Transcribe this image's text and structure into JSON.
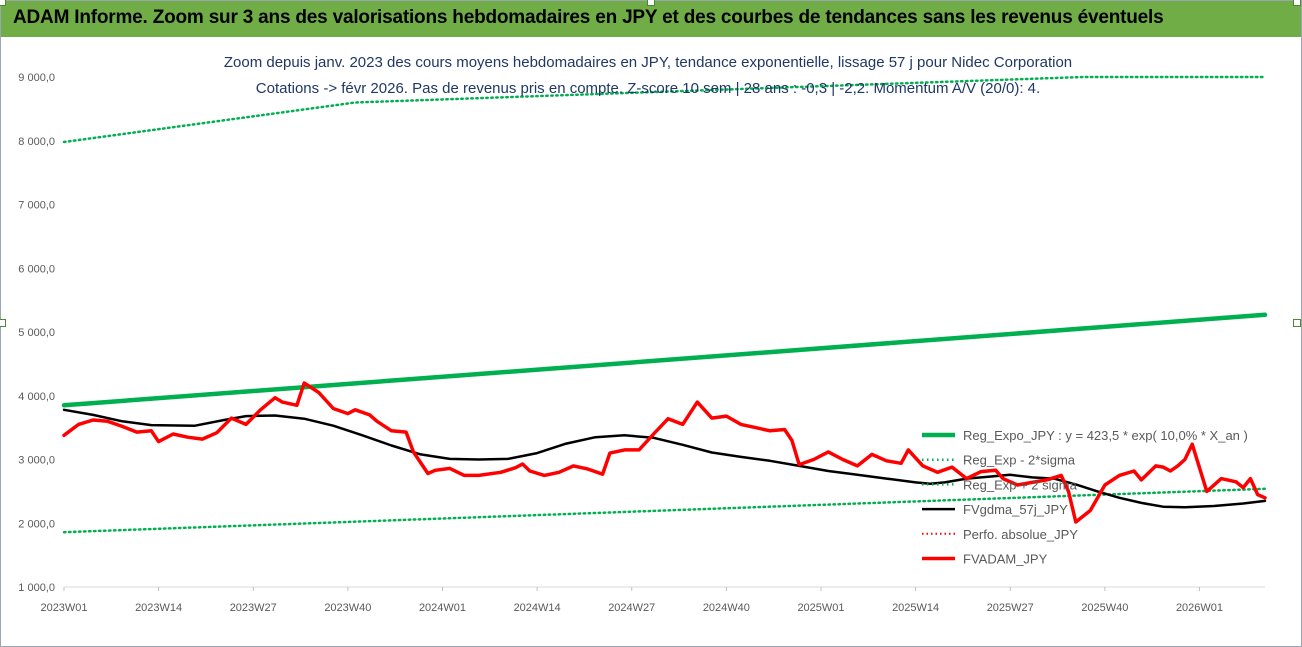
{
  "header": {
    "title": "ADAM Informe. Zoom sur 3 ans des valorisations hebdomadaires en JPY et des courbes de tendances sans les revenus éventuels"
  },
  "colors": {
    "header_bg": "#70ad47",
    "reg_expo": "#00b050",
    "band": "#00b050",
    "fvgdma": "#000000",
    "perfo": "#ff0000",
    "fvadam": "#ff0000",
    "title_text": "#1f3864"
  },
  "chart_data": {
    "type": "line",
    "title": "Zoom depuis janv. 2023 des cours moyens hebdomadaires en JPY, tendance exponentielle, lissage 57 j pour Nidec Corporation",
    "subtitle": "Cotations -> févr 2026.  Pas de revenus pris en compte. Z-score 10 sem | 28 ans : -0,3 | -2,2. Momentum A/V (20/0): 4.",
    "xlabel": "",
    "ylabel": "",
    "ylim": [
      1000,
      9000
    ],
    "yticks": [
      "1 000,0",
      "2 000,0",
      "3 000,0",
      "4 000,0",
      "5 000,0",
      "6 000,0",
      "7 000,0",
      "8 000,0",
      "9 000,0"
    ],
    "xlim": [
      0,
      165
    ],
    "xticks": [
      {
        "x": 0,
        "label": "2023W01"
      },
      {
        "x": 13,
        "label": "2023W14"
      },
      {
        "x": 26,
        "label": "2023W27"
      },
      {
        "x": 39,
        "label": "2023W40"
      },
      {
        "x": 52,
        "label": "2024W01"
      },
      {
        "x": 65,
        "label": "2024W14"
      },
      {
        "x": 78,
        "label": "2024W27"
      },
      {
        "x": 91,
        "label": "2024W40"
      },
      {
        "x": 104,
        "label": "2025W01"
      },
      {
        "x": 117,
        "label": "2025W14"
      },
      {
        "x": 130,
        "label": "2025W27"
      },
      {
        "x": 143,
        "label": "2025W40"
      },
      {
        "x": 156,
        "label": "2026W01"
      }
    ],
    "grid": false,
    "legend": "right",
    "series": [
      {
        "name": "Reg_Expo_JPY : y = 423,5 * exp( 10,0% *  X_an )",
        "style": "thick-solid",
        "color": "#00b050",
        "points": [
          [
            0,
            3850
          ],
          [
            165,
            5270
          ]
        ]
      },
      {
        "name": "Reg_Exp - 2*sigma",
        "style": "dotted",
        "color": "#00b050",
        "points": [
          [
            0,
            1860
          ],
          [
            165,
            2540
          ]
        ]
      },
      {
        "name": "Reg_Exp + 2 sigma",
        "style": "dotted",
        "color": "#00b050",
        "points": [
          [
            0,
            7980
          ],
          [
            40,
            8600
          ],
          [
            140,
            9000
          ],
          [
            165,
            9000
          ]
        ]
      },
      {
        "name": "FVgdma_57j_JPY",
        "style": "solid",
        "color": "#000000",
        "points": [
          [
            0,
            3780
          ],
          [
            4,
            3700
          ],
          [
            8,
            3600
          ],
          [
            12,
            3540
          ],
          [
            18,
            3530
          ],
          [
            22,
            3620
          ],
          [
            25,
            3680
          ],
          [
            29,
            3690
          ],
          [
            33,
            3640
          ],
          [
            37,
            3530
          ],
          [
            41,
            3380
          ],
          [
            45,
            3220
          ],
          [
            49,
            3080
          ],
          [
            53,
            3010
          ],
          [
            57,
            3000
          ],
          [
            61,
            3010
          ],
          [
            65,
            3100
          ],
          [
            69,
            3250
          ],
          [
            73,
            3350
          ],
          [
            77,
            3380
          ],
          [
            81,
            3340
          ],
          [
            85,
            3230
          ],
          [
            89,
            3110
          ],
          [
            93,
            3040
          ],
          [
            97,
            2980
          ],
          [
            101,
            2900
          ],
          [
            105,
            2820
          ],
          [
            109,
            2760
          ],
          [
            113,
            2700
          ],
          [
            117,
            2640
          ],
          [
            119,
            2620
          ],
          [
            121,
            2640
          ],
          [
            124,
            2700
          ],
          [
            127,
            2730
          ],
          [
            130,
            2760
          ],
          [
            133,
            2720
          ],
          [
            136,
            2700
          ],
          [
            139,
            2610
          ],
          [
            142,
            2500
          ],
          [
            145,
            2400
          ],
          [
            148,
            2320
          ],
          [
            151,
            2260
          ],
          [
            154,
            2250
          ],
          [
            158,
            2270
          ],
          [
            162,
            2310
          ],
          [
            165,
            2350
          ]
        ]
      },
      {
        "name": "Perfo. absolue_JPY",
        "style": "red-dotted",
        "color": "#ff0000",
        "points": []
      },
      {
        "name": "FVADAM_JPY",
        "style": "thick-solid",
        "color": "#ff0000",
        "points": [
          [
            0,
            3380
          ],
          [
            2,
            3550
          ],
          [
            4,
            3620
          ],
          [
            6,
            3600
          ],
          [
            8,
            3520
          ],
          [
            10,
            3430
          ],
          [
            12,
            3450
          ],
          [
            13,
            3280
          ],
          [
            15,
            3400
          ],
          [
            17,
            3350
          ],
          [
            19,
            3320
          ],
          [
            21,
            3420
          ],
          [
            23,
            3650
          ],
          [
            25,
            3550
          ],
          [
            27,
            3780
          ],
          [
            29,
            3970
          ],
          [
            30,
            3900
          ],
          [
            32,
            3850
          ],
          [
            33,
            4200
          ],
          [
            35,
            4050
          ],
          [
            37,
            3800
          ],
          [
            39,
            3720
          ],
          [
            40,
            3780
          ],
          [
            42,
            3700
          ],
          [
            43,
            3600
          ],
          [
            45,
            3450
          ],
          [
            47,
            3430
          ],
          [
            48,
            3120
          ],
          [
            50,
            2780
          ],
          [
            51,
            2830
          ],
          [
            53,
            2860
          ],
          [
            55,
            2750
          ],
          [
            57,
            2750
          ],
          [
            60,
            2800
          ],
          [
            62,
            2870
          ],
          [
            63,
            2930
          ],
          [
            64,
            2820
          ],
          [
            66,
            2750
          ],
          [
            68,
            2800
          ],
          [
            70,
            2900
          ],
          [
            72,
            2850
          ],
          [
            74,
            2770
          ],
          [
            75,
            3100
          ],
          [
            77,
            3150
          ],
          [
            79,
            3150
          ],
          [
            81,
            3400
          ],
          [
            83,
            3640
          ],
          [
            85,
            3550
          ],
          [
            87,
            3900
          ],
          [
            89,
            3650
          ],
          [
            91,
            3680
          ],
          [
            93,
            3550
          ],
          [
            95,
            3500
          ],
          [
            97,
            3450
          ],
          [
            99,
            3470
          ],
          [
            100,
            3300
          ],
          [
            101,
            2920
          ],
          [
            103,
            3000
          ],
          [
            105,
            3120
          ],
          [
            107,
            3000
          ],
          [
            109,
            2900
          ],
          [
            111,
            3080
          ],
          [
            113,
            2980
          ],
          [
            115,
            2940
          ],
          [
            116,
            3150
          ],
          [
            118,
            2900
          ],
          [
            120,
            2800
          ],
          [
            122,
            2880
          ],
          [
            124,
            2700
          ],
          [
            126,
            2810
          ],
          [
            128,
            2830
          ],
          [
            129,
            2700
          ],
          [
            131,
            2600
          ],
          [
            133,
            2640
          ],
          [
            135,
            2680
          ],
          [
            137,
            2750
          ],
          [
            138,
            2500
          ],
          [
            139,
            2020
          ],
          [
            141,
            2200
          ],
          [
            143,
            2600
          ],
          [
            145,
            2750
          ],
          [
            147,
            2820
          ],
          [
            148,
            2680
          ],
          [
            150,
            2900
          ],
          [
            151,
            2880
          ],
          [
            152,
            2820
          ],
          [
            153,
            2900
          ],
          [
            154,
            3000
          ],
          [
            155,
            3240
          ],
          [
            157,
            2500
          ],
          [
            159,
            2700
          ],
          [
            161,
            2650
          ],
          [
            162,
            2560
          ],
          [
            163,
            2700
          ],
          [
            164,
            2450
          ],
          [
            165,
            2400
          ]
        ]
      }
    ]
  }
}
